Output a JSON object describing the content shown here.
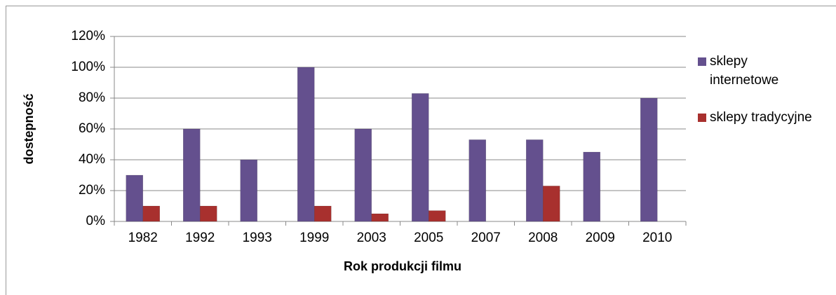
{
  "chart_data": {
    "type": "bar",
    "categories": [
      "1982",
      "1992",
      "1993",
      "1999",
      "2003",
      "2005",
      "2007",
      "2008",
      "2009",
      "2010"
    ],
    "series": [
      {
        "name": "sklepy internetowe",
        "color": "#64508e",
        "values": [
          30,
          60,
          40,
          100,
          60,
          83,
          53,
          53,
          45,
          80
        ]
      },
      {
        "name": "sklepy tradycyjne",
        "color": "#a8302e",
        "values": [
          10,
          10,
          0,
          10,
          5,
          7,
          0,
          23,
          0,
          0
        ]
      }
    ],
    "x_label": "Rok produkcji filmu",
    "y_label": "dostepność",
    "ylim": [
      0,
      120
    ],
    "yticks": [
      {
        "value": 0,
        "label": "0%"
      },
      {
        "value": 20,
        "label": "20%"
      },
      {
        "value": 40,
        "label": "40%"
      },
      {
        "value": 60,
        "label": "60%"
      },
      {
        "value": 80,
        "label": "80%"
      },
      {
        "value": 100,
        "label": "100%"
      },
      {
        "value": 120,
        "label": "120%"
      }
    ],
    "grid": true,
    "legend": "right"
  }
}
